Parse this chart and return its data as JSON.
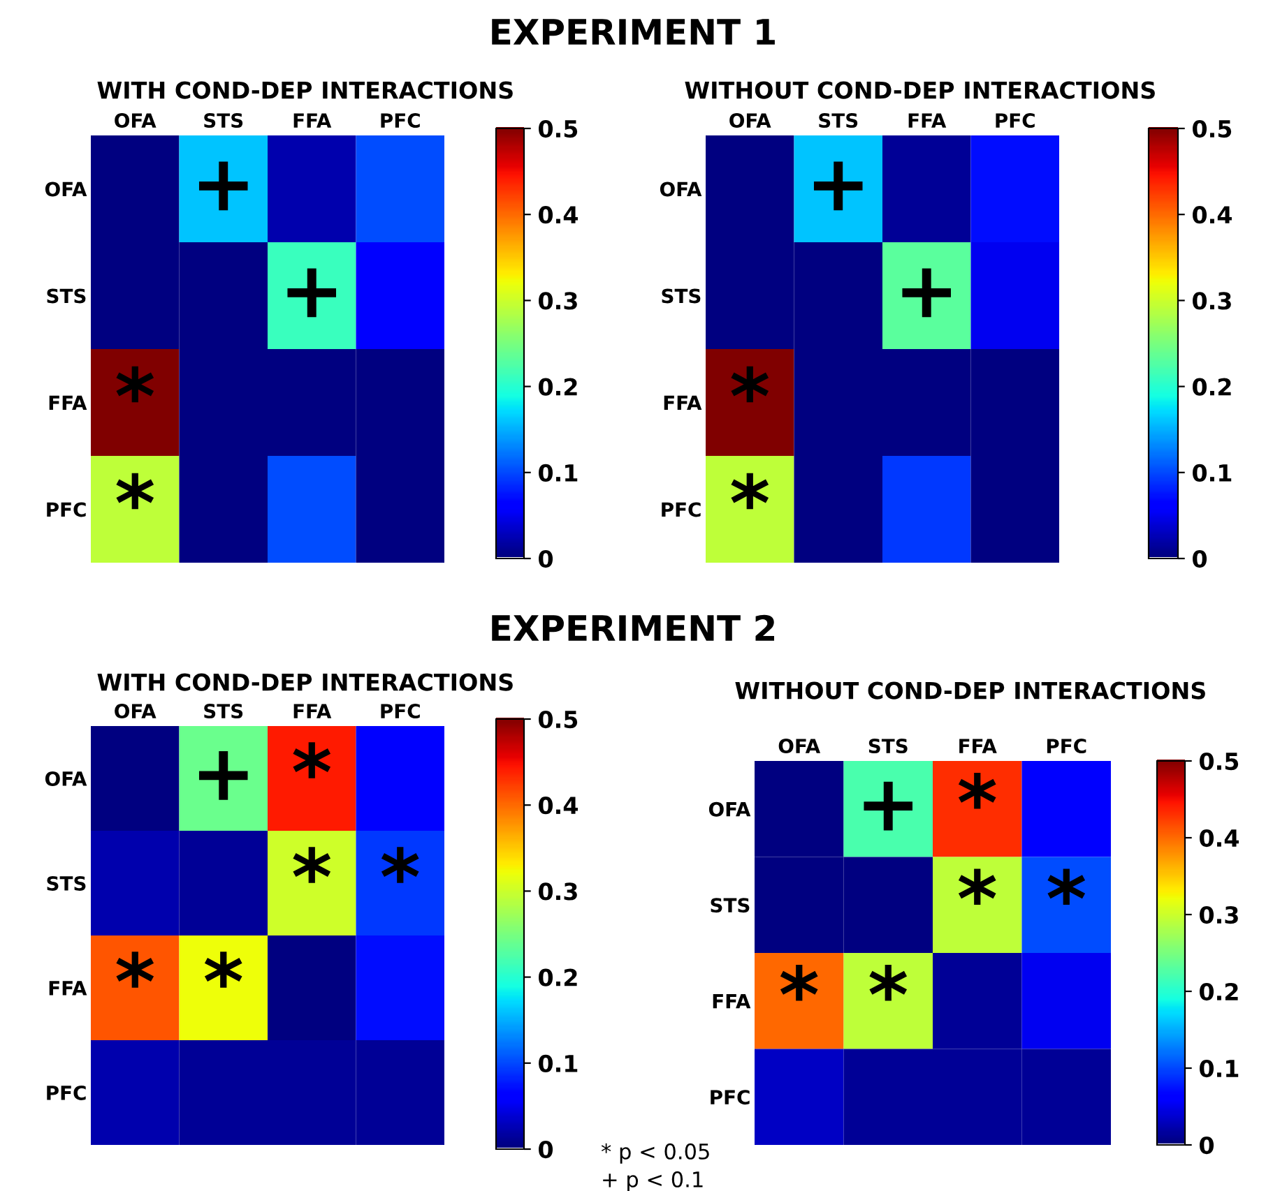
{
  "chart_data": [
    {
      "type": "heatmap",
      "title": "WITH COND-DEP INTERACTIONS",
      "annotations": [
        "EXPERIMENT 1"
      ],
      "categories": [
        "OFA",
        "STS",
        "FFA",
        "PFC"
      ],
      "y_categories": [
        "OFA",
        "STS",
        "FFA",
        "PFC"
      ],
      "cells": [
        [
          0,
          0.16,
          0.02,
          0.1
        ],
        [
          0,
          0,
          0.21,
          0.06
        ],
        [
          0.5,
          0,
          0,
          0
        ],
        [
          0.29,
          0,
          0.1,
          0
        ]
      ],
      "cell_labels": [
        [
          null,
          "+",
          null,
          null
        ],
        [
          null,
          null,
          "+",
          null
        ],
        [
          "*",
          null,
          null,
          null
        ],
        [
          "*",
          null,
          null,
          null
        ]
      ],
      "clim": [
        0,
        0.5
      ],
      "cticks": [
        0,
        0.1,
        0.2,
        0.3,
        0.4,
        0.5
      ]
    },
    {
      "type": "heatmap",
      "title": "WITHOUT COND-DEP INTERACTIONS",
      "categories": [
        "OFA",
        "STS",
        "FFA",
        "PFC"
      ],
      "y_categories": [
        "OFA",
        "STS",
        "FFA",
        "PFC"
      ],
      "cells": [
        [
          0,
          0.16,
          0.01,
          0.07
        ],
        [
          0,
          0,
          0.23,
          0.05
        ],
        [
          0.5,
          0,
          0,
          0
        ],
        [
          0.29,
          0,
          0.09,
          0
        ]
      ],
      "cell_labels": [
        [
          null,
          "+",
          null,
          null
        ],
        [
          null,
          null,
          "+",
          null
        ],
        [
          "*",
          null,
          null,
          null
        ],
        [
          "*",
          null,
          null,
          null
        ]
      ],
      "clim": [
        0,
        0.5
      ],
      "cticks": [
        0,
        0.1,
        0.2,
        0.3,
        0.4,
        0.5
      ]
    },
    {
      "type": "heatmap",
      "title": "WITH COND-DEP INTERACTIONS",
      "annotations": [
        "EXPERIMENT 2",
        "* p < 0.05",
        "+ p < 0.1"
      ],
      "categories": [
        "OFA",
        "STS",
        "FFA",
        "PFC"
      ],
      "y_categories": [
        "OFA",
        "STS",
        "FFA",
        "PFC"
      ],
      "cells": [
        [
          0,
          0.24,
          0.44,
          0.06
        ],
        [
          0.02,
          0.01,
          0.3,
          0.09
        ],
        [
          0.41,
          0.32,
          0,
          0.07
        ],
        [
          0.02,
          0.01,
          0.01,
          0.01
        ]
      ],
      "cell_labels": [
        [
          null,
          "+",
          "*",
          null
        ],
        [
          null,
          null,
          "*",
          "*"
        ],
        [
          "*",
          "*",
          null,
          null
        ],
        [
          null,
          null,
          null,
          null
        ]
      ],
      "clim": [
        0,
        0.5
      ],
      "cticks": [
        0,
        0.1,
        0.2,
        0.3,
        0.4,
        0.5
      ]
    },
    {
      "type": "heatmap",
      "title": "WITHOUT COND-DEP INTERACTIONS",
      "categories": [
        "OFA",
        "STS",
        "FFA",
        "PFC"
      ],
      "y_categories": [
        "OFA",
        "STS",
        "FFA",
        "PFC"
      ],
      "cells": [
        [
          0,
          0.22,
          0.43,
          0.06
        ],
        [
          0,
          0,
          0.29,
          0.1
        ],
        [
          0.4,
          0.29,
          0.01,
          0.05
        ],
        [
          0.03,
          0.01,
          0.01,
          0.01
        ]
      ],
      "cell_labels": [
        [
          null,
          "+",
          "*",
          null
        ],
        [
          null,
          null,
          "*",
          "*"
        ],
        [
          "*",
          "*",
          null,
          null
        ],
        [
          null,
          null,
          null,
          null
        ]
      ],
      "clim": [
        0,
        0.5
      ],
      "cticks": [
        0,
        0.1,
        0.2,
        0.3,
        0.4,
        0.5
      ]
    }
  ]
}
